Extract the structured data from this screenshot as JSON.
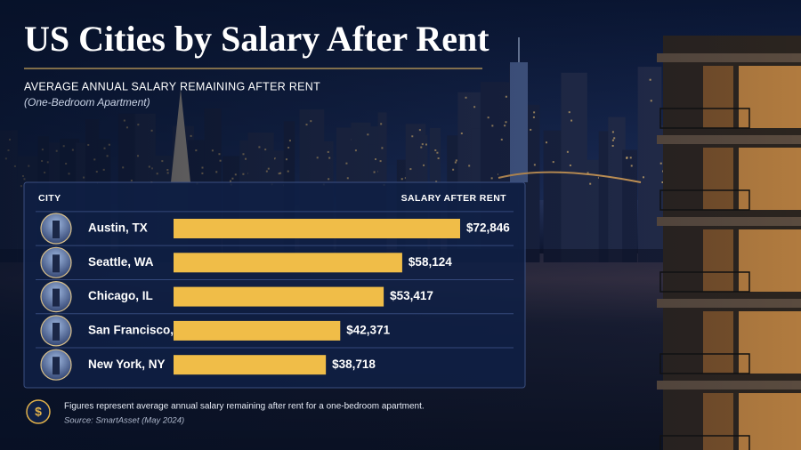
{
  "chart_data": {
    "type": "bar",
    "orientation": "horizontal",
    "title": "US Cities by Salary After Rent",
    "subtitle": "AVERAGE ANNUAL SALARY REMAINING AFTER RENT",
    "subtitle_note": "(One-Bedroom Apartment)",
    "category_header": "CITY",
    "value_header": "SALARY AFTER RENT",
    "categories": [
      "Austin, TX",
      "Seattle, WA",
      "Chicago, IL",
      "San Francisco, CA",
      "New York, NY"
    ],
    "values": [
      72846,
      58124,
      53417,
      42371,
      38718
    ],
    "value_labels": [
      "$72,846",
      "$58,124",
      "$53,417",
      "$42,371",
      "$38,718"
    ],
    "color": "#f0bd48",
    "footnote": "Figures represent average annual salary remaining after rent for a one-bedroom apartment.",
    "source": "Source: SmartAsset (May 2024)"
  }
}
